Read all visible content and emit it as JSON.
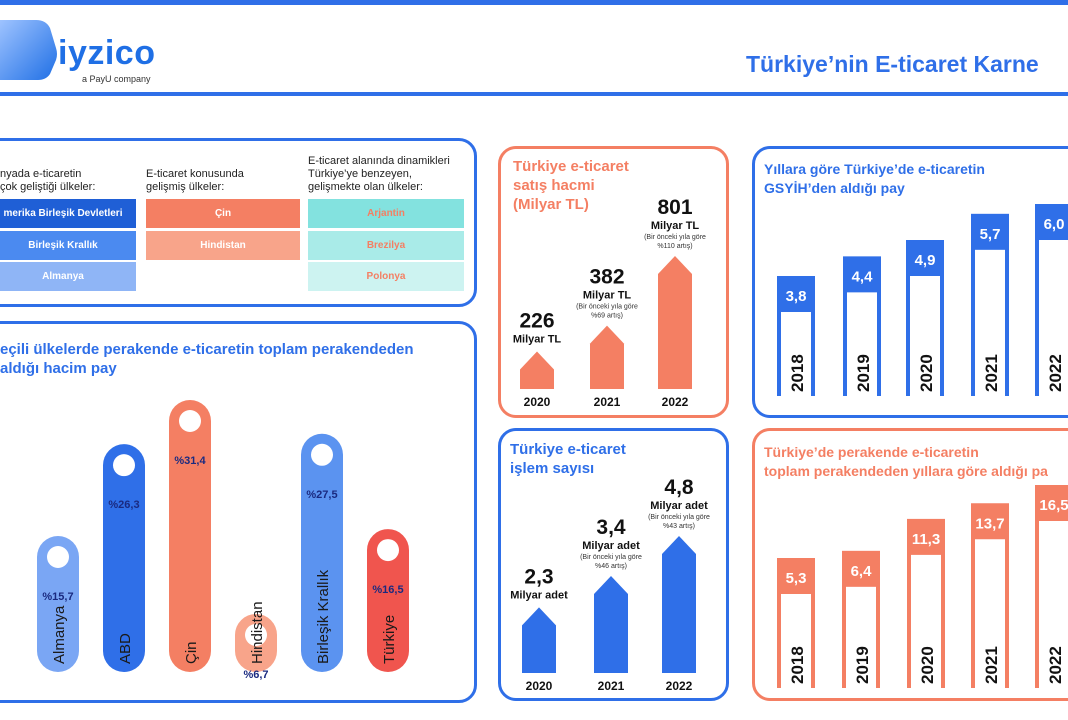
{
  "header": {
    "logo_text": "iyzico",
    "logo_sub": "a PayU company",
    "title": "Türkiye’nin E-ticaret Karne"
  },
  "colors": {
    "blue": "#2f6fe8",
    "orange": "#f47f63",
    "red": "#f0554e",
    "light_orange": "#f8a48a",
    "teal": "#83e2df"
  },
  "countries": {
    "col1_title": "nyada e-ticaretin\nçok geliştiği ülkeler:",
    "col2_title": "E-ticaret konusunda\ngelişmiş ülkeler:",
    "col3_title": "E-ticaret alanında dinamikleri\nTürkiye’ye benzeyen,\ngelişmekte olan ülkeler:",
    "col1": [
      "merika Birleşik Devletleri",
      "Birleşik Krallık",
      "Almanya"
    ],
    "col2": [
      "Çin",
      "Hindistan"
    ],
    "col3": [
      "Arjantin",
      "Brezilya",
      "Polonya"
    ]
  },
  "chart_data": [
    {
      "id": "share_by_country",
      "type": "bar",
      "title": "Seçili ülkelerde perakende e-ticaretin toplam perakendeden aldığı hacim pay",
      "title_visible": "eçili ülkelerde perakende e-ticaretin toplam perakendeden\naldığı hacim pay",
      "categories": [
        "Almanya",
        "ABD",
        "Çin",
        "Hindistan",
        "Birleşik Krallık",
        "Türkiye"
      ],
      "values": [
        15.7,
        26.3,
        31.4,
        6.7,
        27.5,
        16.5
      ],
      "labels": [
        "%15,7",
        "%26,3",
        "%31,4",
        "%6,7",
        "%27,5",
        "%16,5"
      ],
      "colors": [
        "#7aa6f4",
        "#2f6fe8",
        "#f47f63",
        "#f8a48a",
        "#5b93f0",
        "#f0554e"
      ]
    },
    {
      "id": "sales_volume",
      "type": "bar",
      "title": "Türkiye e-ticaret\nsatış hacmi\n(Milyar TL)",
      "categories": [
        "2020",
        "2021",
        "2022"
      ],
      "values": [
        226,
        382,
        801
      ],
      "unit": "Milyar TL",
      "notes": [
        "",
        "(Bir önceki yıla göre\n%69 artış)",
        "(Bir önceki yıla göre\n%110 artış)"
      ]
    },
    {
      "id": "transaction_count",
      "type": "bar",
      "title": "Türkiye e-ticaret\nişlem sayısı",
      "categories": [
        "2020",
        "2021",
        "2022"
      ],
      "values": [
        2.3,
        3.4,
        4.8
      ],
      "labels": [
        "2,3",
        "3,4",
        "4,8"
      ],
      "unit": "Milyar adet",
      "notes": [
        "",
        "(Bir önceki yıla göre\n%46 artış)",
        "(Bir önceki yıla göre\n%43 artış)"
      ]
    },
    {
      "id": "gdp_share",
      "type": "bar",
      "title": "Yıllara göre Türkiye’de e-ticaretin\nGSYİH’den aldığı pay",
      "categories": [
        "2018",
        "2019",
        "2020",
        "2021",
        "2022"
      ],
      "values": [
        3.8,
        4.4,
        4.9,
        5.7,
        6.0
      ],
      "labels": [
        "3,8",
        "4,4",
        "4,9",
        "5,7",
        "6,0"
      ]
    },
    {
      "id": "retail_share_by_year",
      "type": "bar",
      "title": "Türkiye’de perakende e-ticaretin\ntoplam perakendeden yıllara göre aldığı pa",
      "categories": [
        "2018",
        "2019",
        "2020",
        "2021",
        "2022"
      ],
      "values": [
        5.3,
        6.4,
        11.3,
        13.7,
        16.5
      ],
      "labels": [
        "5,3",
        "6,4",
        "11,3",
        "13,7",
        "16,5"
      ]
    }
  ]
}
